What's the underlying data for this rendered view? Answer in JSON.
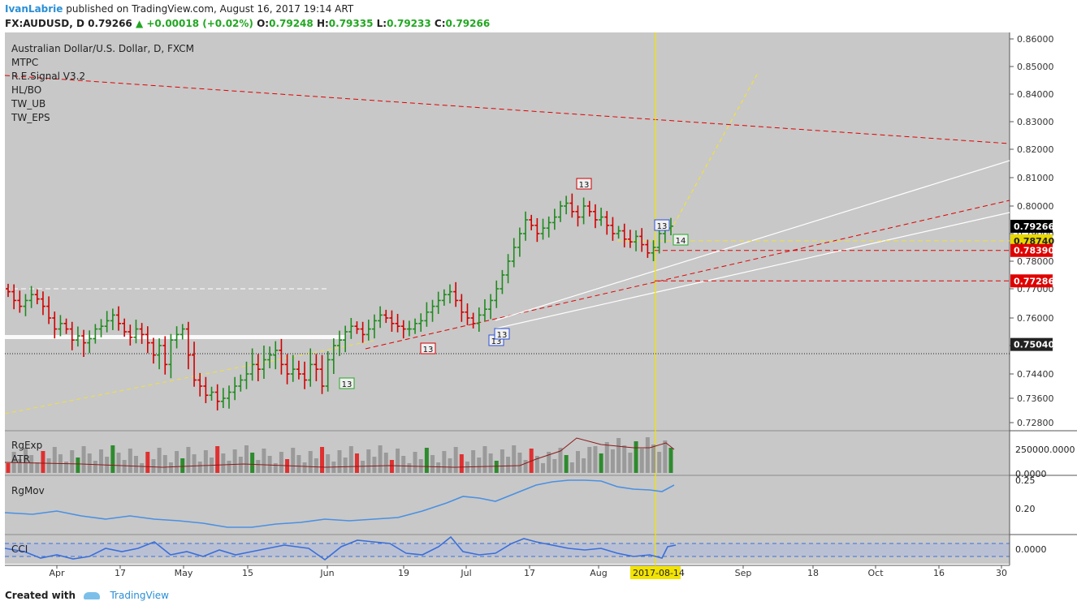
{
  "header": {
    "author": "IvanLabrie",
    "published": "published on TradingView.com, August 16, 2017 19:14 ART",
    "symbol": "FX:AUDUSD, D",
    "last": "0.79266",
    "change": "▲ +0.00018 (+0.02%)",
    "open_label": "O:",
    "open": "0.79248",
    "high_label": "H:",
    "high": "0.79335",
    "low_label": "L:",
    "low": "0.79233",
    "close_label": "C:",
    "close": "0.79266"
  },
  "legend": [
    "Australian Dollar/U.S. Dollar, D, FXCM",
    "MTPC",
    "R.E.Signal V3.2",
    "HL/BO",
    "TW_UB",
    "TW_EPS"
  ],
  "panes": {
    "rgexp": "RgExp",
    "atr": "ATR",
    "rgmov": "RgMov",
    "cci": "CCI"
  },
  "footer": {
    "created": "Created with",
    "brand": "TradingView"
  },
  "colors": {
    "bg": "#c8c8c8",
    "bull": "#1f8a1f",
    "bear": "#d10000",
    "volume_up": "#2e8b2e",
    "volume_down": "#e03030",
    "rgmov": "#4a90e2",
    "cci": "#3a6fd8"
  },
  "chart_data": {
    "type": "candlestick",
    "title": "Australian Dollar/U.S. Dollar, D, FXCM",
    "y_ticks": [
      "0.86000",
      "0.85000",
      "0.84000",
      "0.83000",
      "0.82000",
      "0.81000",
      "0.80000",
      "0.79000",
      "0.78000",
      "0.77000",
      "0.76000",
      "0.75000",
      "0.74400",
      "0.73600",
      "0.72800"
    ],
    "ylim": [
      0.725,
      0.8615
    ],
    "x_ticks": [
      "Apr",
      "17",
      "May",
      "15",
      "Jun",
      "19",
      "Jul",
      "17",
      "Aug",
      "Sep",
      "18",
      "Oct",
      "16",
      "30"
    ],
    "current_date_label": "2017-08-14",
    "price_labels": [
      {
        "text": "0.79266",
        "value": 0.79266,
        "color": "#000000"
      },
      {
        "text": "0.78740",
        "value": 0.7874,
        "color": "#e8d800"
      },
      {
        "text": "0.78390",
        "value": 0.7839,
        "color": "#e00000"
      },
      {
        "text": "0.77286",
        "value": 0.77286,
        "color": "#e00000"
      },
      {
        "text": "0.75040",
        "value": 0.7504,
        "color": "#222222"
      }
    ],
    "closes": [
      0.769,
      0.766,
      0.764,
      0.766,
      0.768,
      0.7665,
      0.764,
      0.76,
      0.756,
      0.758,
      0.756,
      0.752,
      0.7535,
      0.751,
      0.7525,
      0.756,
      0.757,
      0.759,
      0.761,
      0.758,
      0.755,
      0.753,
      0.756,
      0.754,
      0.751,
      0.748,
      0.75,
      0.746,
      0.752,
      0.754,
      0.756,
      0.748,
      0.742,
      0.74,
      0.737,
      0.738,
      0.735,
      0.736,
      0.738,
      0.74,
      0.742,
      0.744,
      0.746,
      0.745,
      0.747,
      0.748,
      0.749,
      0.746,
      0.744,
      0.745,
      0.744,
      0.742,
      0.746,
      0.745,
      0.74,
      0.747,
      0.75,
      0.752,
      0.755,
      0.757,
      0.756,
      0.754,
      0.756,
      0.759,
      0.761,
      0.76,
      0.758,
      0.757,
      0.756,
      0.756,
      0.758,
      0.759,
      0.762,
      0.764,
      0.766,
      0.768,
      0.769,
      0.766,
      0.762,
      0.76,
      0.758,
      0.761,
      0.763,
      0.766,
      0.77,
      0.775,
      0.78,
      0.785,
      0.79,
      0.795,
      0.793,
      0.79,
      0.792,
      0.794,
      0.796,
      0.8,
      0.801,
      0.798,
      0.796,
      0.8,
      0.798,
      0.795,
      0.796,
      0.793,
      0.79,
      0.791,
      0.788,
      0.787,
      0.789,
      0.786,
      0.783,
      0.785,
      0.79,
      0.792,
      0.7927
    ],
    "series": [
      {
        "name": "RgExp",
        "panel": "volume histogram",
        "ylim": [
          0,
          250000
        ],
        "ticks": [
          "250000.0000",
          "0.0000"
        ]
      },
      {
        "name": "RgMov",
        "panel": "line",
        "ticks": [
          "0.25",
          "0.20"
        ]
      },
      {
        "name": "CCI",
        "panel": "line",
        "ticks": [
          "0.0000"
        ]
      }
    ],
    "markers": [
      "13",
      "13",
      "13",
      "13",
      "13",
      "14",
      "13"
    ]
  }
}
